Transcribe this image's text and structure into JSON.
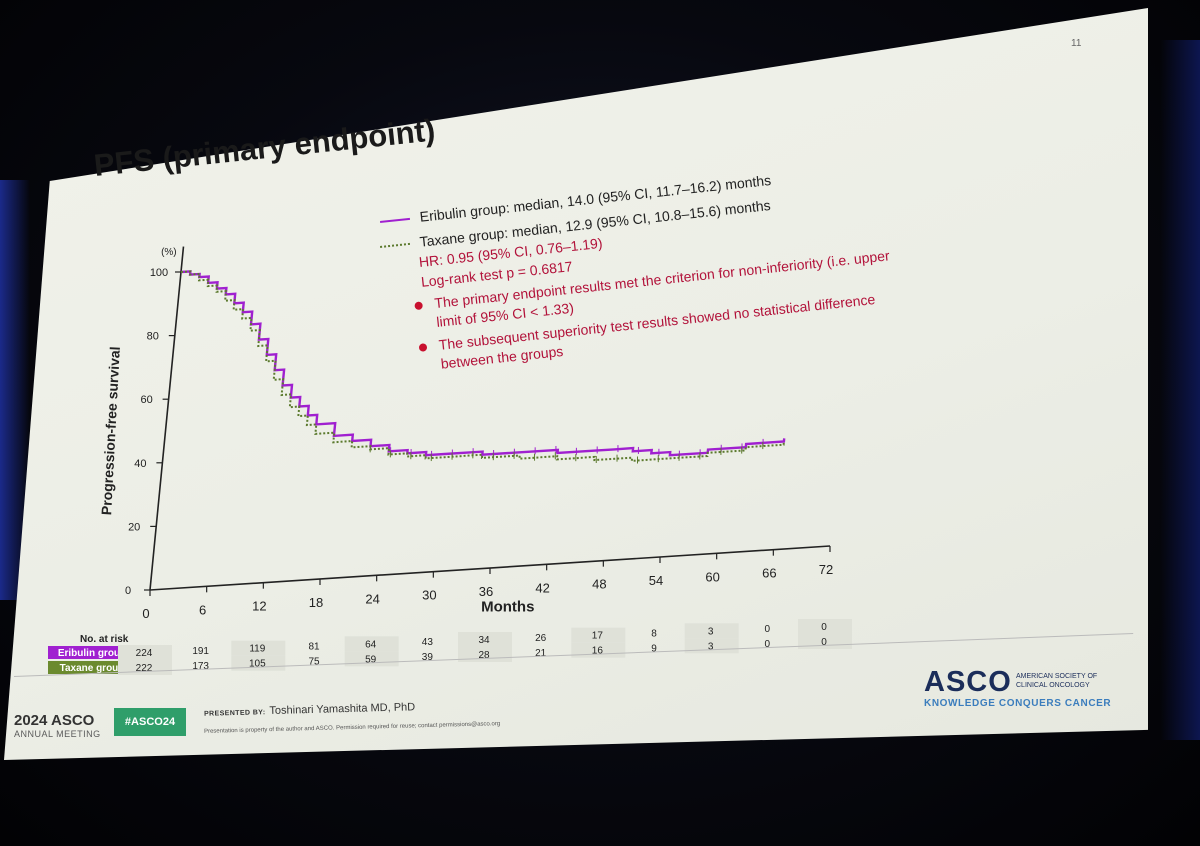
{
  "slide": {
    "number": "11",
    "title": "PFS (primary endpoint)",
    "legend": {
      "eribulin": "Eribulin group: median, 14.0 (95% CI, 11.7–16.2) months",
      "taxane": "Taxane group: median, 12.9 (95% CI, 10.8–15.6) months"
    },
    "stats": {
      "hr": "HR: 0.95 (95% CI, 0.76–1.19)",
      "logrank": "Log-rank test p = 0.6817"
    },
    "bullets": [
      "The primary endpoint results met the criterion for non-inferiority (i.e. upper limit of 95% CI < 1.33)",
      "The subsequent superiority test results showed no statistical difference between the groups"
    ],
    "footer": {
      "meeting_year": "2024 ASCO",
      "meeting_sub": "ANNUAL MEETING",
      "hashtag": "#ASCO24",
      "presented_by_label": "PRESENTED BY:",
      "presenter": "Toshinari Yamashita MD, PhD",
      "disclaimer": "Presentation is property of the author and ASCO. Permission required for reuse; contact permissions@asco.org",
      "logo": "ASCO",
      "logo_sub": "AMERICAN SOCIETY OF CLINICAL ONCOLOGY",
      "tagline": "KNOWLEDGE CONQUERS CANCER"
    }
  },
  "colors": {
    "eribulin": "#a020d0",
    "taxane": "#5c7a2e",
    "eribulin_label_bg": "#a020d0",
    "taxane_label_bg": "#6b8a2e",
    "accent_red": "#b2123a"
  },
  "chart_data": {
    "type": "line",
    "title": "PFS (primary endpoint)",
    "xlabel": "Months",
    "ylabel": "Progression-free survival",
    "yunit": "(%)",
    "xlim": [
      0,
      72
    ],
    "ylim": [
      0,
      100
    ],
    "xticks": [
      0,
      6,
      12,
      18,
      24,
      30,
      36,
      42,
      48,
      54,
      60,
      66,
      72
    ],
    "yticks": [
      0,
      20,
      40,
      60,
      80,
      100
    ],
    "series": [
      {
        "name": "Eribulin group",
        "x": [
          0,
          1,
          2,
          3,
          4,
          5,
          6,
          7,
          8,
          9,
          10,
          11,
          12,
          13,
          14,
          15,
          16,
          18,
          20,
          22,
          24,
          26,
          28,
          30,
          34,
          38,
          42,
          46,
          48,
          50,
          52,
          54,
          58,
          62,
          66
        ],
        "values": [
          100,
          99,
          98,
          96,
          94,
          92,
          89,
          86,
          82,
          77,
          72,
          67,
          62,
          58,
          55,
          52,
          49,
          45,
          43,
          41,
          39,
          38,
          37,
          37,
          36,
          36,
          35,
          35,
          35,
          34,
          33,
          32,
          33,
          34,
          35
        ]
      },
      {
        "name": "Taxane group",
        "x": [
          0,
          1,
          2,
          3,
          4,
          5,
          6,
          7,
          8,
          9,
          10,
          11,
          12,
          13,
          14,
          15,
          16,
          18,
          20,
          22,
          24,
          26,
          28,
          30,
          34,
          38,
          42,
          46,
          48,
          50,
          52,
          54,
          58,
          62,
          66
        ],
        "values": [
          100,
          99,
          97,
          95,
          93,
          90,
          87,
          84,
          80,
          75,
          70,
          64,
          59,
          55,
          52,
          49,
          46,
          43,
          41,
          40,
          38,
          37,
          36,
          36,
          35,
          34,
          33,
          32,
          32,
          31,
          31,
          31,
          32,
          33,
          34
        ]
      }
    ],
    "at_risk": {
      "label": "No. at risk",
      "rows": [
        {
          "name": "Eribulin group",
          "values": [
            "224",
            "191",
            "119",
            "81",
            "64",
            "43",
            "34",
            "26",
            "17",
            "8",
            "3",
            "0",
            "0"
          ]
        },
        {
          "name": "Taxane group",
          "values": [
            "222",
            "173",
            "105",
            "75",
            "59",
            "39",
            "28",
            "21",
            "16",
            "9",
            "3",
            "0",
            "0"
          ]
        }
      ]
    }
  }
}
